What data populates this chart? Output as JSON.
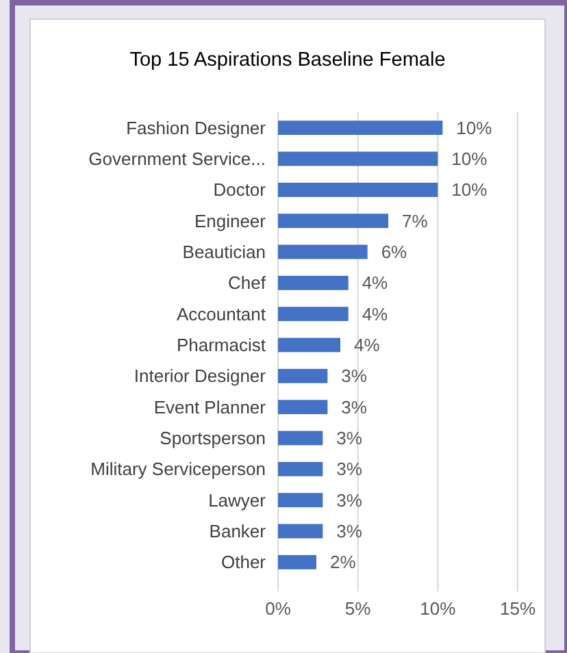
{
  "chart_data": {
    "type": "bar",
    "orientation": "horizontal",
    "title": "Top 15 Aspirations Baseline Female",
    "categories": [
      "Fashion Designer",
      "Government Service...",
      "Doctor",
      "Engineer",
      "Beautician",
      "Chef",
      "Accountant",
      "Pharmacist",
      "Interior Designer",
      "Event Planner",
      "Sportsperson",
      "Military Serviceperson",
      "Lawyer",
      "Banker",
      "Other"
    ],
    "values": [
      10.3,
      10.0,
      10.0,
      6.9,
      5.6,
      4.4,
      4.4,
      3.9,
      3.1,
      3.1,
      2.8,
      2.8,
      2.8,
      2.8,
      2.4
    ],
    "value_labels": [
      "10%",
      "10%",
      "10%",
      "7%",
      "6%",
      "4%",
      "4%",
      "4%",
      "3%",
      "3%",
      "3%",
      "3%",
      "3%",
      "3%",
      "2%"
    ],
    "color": "#4472c4",
    "xlim": [
      0,
      15
    ],
    "xticks": [
      {
        "value": 0,
        "label": "0%"
      },
      {
        "value": 5,
        "label": "5%"
      },
      {
        "value": 10,
        "label": "10%"
      },
      {
        "value": 15,
        "label": "15%"
      }
    ],
    "grid": "x"
  }
}
